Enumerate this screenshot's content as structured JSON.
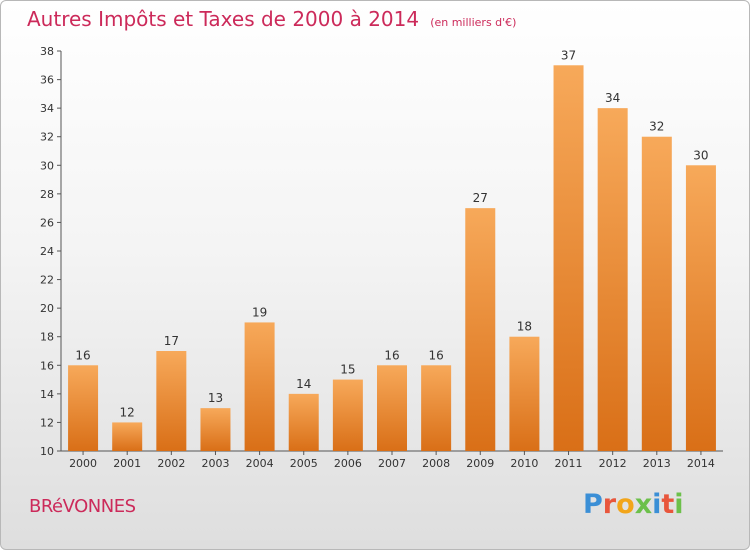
{
  "header": {
    "title": "Autres Impôts et Taxes de 2000 à 2014",
    "subtitle": "(en milliers d'€)"
  },
  "footer": {
    "commune": "BRéVONNES",
    "brand": "Proxiti",
    "brand_colors": [
      "#3b8fd6",
      "#e8563c",
      "#f2a51a",
      "#6cc04a",
      "#3b8fd6",
      "#e8563c",
      "#6cc04a"
    ]
  },
  "chart_data": {
    "type": "bar",
    "title": "Autres Impôts et Taxes de 2000 à 2014",
    "subtitle": "(en milliers d'€)",
    "categories": [
      "2000",
      "2001",
      "2002",
      "2003",
      "2004",
      "2005",
      "2006",
      "2007",
      "2008",
      "2009",
      "2010",
      "2011",
      "2012",
      "2013",
      "2014"
    ],
    "values": [
      16,
      12,
      17,
      13,
      19,
      14,
      15,
      16,
      16,
      27,
      18,
      37,
      34,
      32,
      30
    ],
    "ylim": [
      10,
      38
    ],
    "yticks": [
      10,
      12,
      14,
      16,
      18,
      20,
      22,
      24,
      26,
      28,
      30,
      32,
      34,
      36,
      38
    ],
    "grid": false,
    "colors": {
      "bar_top": "#f7a95a",
      "bar_bottom": "#d96f17",
      "label": "#333333",
      "axis": "#555555"
    }
  }
}
